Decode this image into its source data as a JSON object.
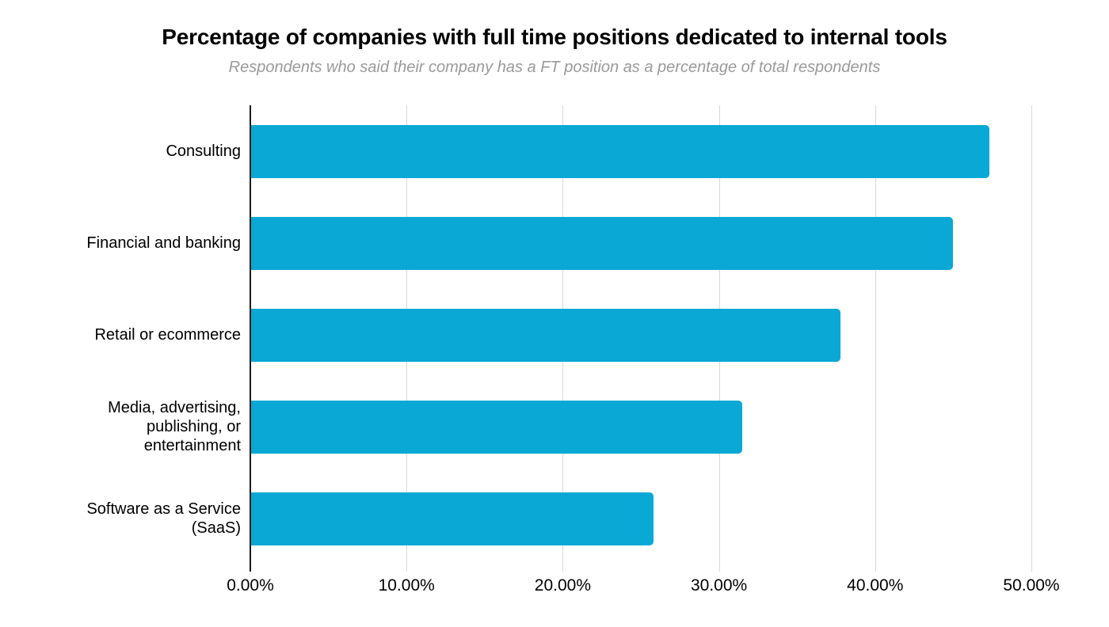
{
  "header": {
    "title": "Percentage of companies with full time positions dedicated to internal tools",
    "subtitle": "Respondents who said their company has a FT position as a percentage of total respondents"
  },
  "colors": {
    "bar": "#0aa8d4",
    "gridline": "#d8d8d8",
    "zero_axis": "#1a1a1a",
    "title_text": "#000000",
    "subtitle_text": "#9a9a9a",
    "tick_label_text": "#000000"
  },
  "chart_data": {
    "type": "bar",
    "orientation": "horizontal",
    "title": "Percentage of companies with full time positions dedicated to internal tools",
    "subtitle": "Respondents who said their company has a FT position as a percentage of total respondents",
    "categories": [
      "Consulting",
      "Financial and banking",
      "Retail or ecommerce",
      "Media, advertising, publishing, or entertainment",
      "Software as a Service (SaaS)"
    ],
    "values": [
      47.3,
      45.0,
      37.8,
      31.5,
      25.8
    ],
    "unit": "%",
    "xlabel": "",
    "ylabel": "",
    "xlim": [
      0,
      50
    ],
    "x_tick_values": [
      0,
      10,
      20,
      30,
      40,
      50
    ],
    "x_tick_labels": [
      "0.00%",
      "10.00%",
      "20.00%",
      "30.00%",
      "40.00%",
      "50.00%"
    ],
    "grid": "vertical-only",
    "legend": "none",
    "data_labels": "none",
    "bar_color": "#0aa8d4"
  }
}
